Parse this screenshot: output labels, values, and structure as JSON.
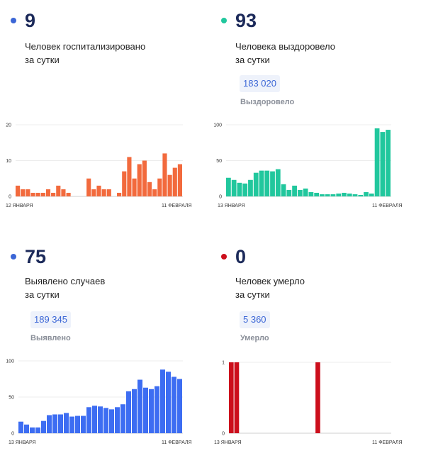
{
  "panels": [
    {
      "number": "9",
      "label_line1": "Человек госпитализировано",
      "label_line2": "за сутки",
      "total": "",
      "total_label": "",
      "color": "#f26a3d",
      "dot_color": "#3b66d6"
    },
    {
      "number": "93",
      "label_line1": "Человека выздоровело",
      "label_line2": "за сутки",
      "total": "183 020",
      "total_label": "Выздоровело",
      "color": "#21c79d",
      "dot_color": "#21c79d"
    },
    {
      "number": "75",
      "label_line1": "Выявлено случаев",
      "label_line2": "за сутки",
      "total": "189 345",
      "total_label": "Выявлено",
      "color": "#3d6df2",
      "dot_color": "#3b66d6"
    },
    {
      "number": "0",
      "label_line1": "Человек умерло",
      "label_line2": "за сутки",
      "total": "5 360",
      "total_label": "Умерло",
      "color": "#cc0f1c",
      "dot_color": "#cc0f1c"
    }
  ],
  "chart_data": [
    {
      "type": "bar",
      "x_start_label": "12 ЯНВАРЯ",
      "x_end_label": "11 ФЕВРАЛЯ",
      "yticks": [
        0,
        10,
        20
      ],
      "ylim": [
        0,
        20
      ],
      "values": [
        3,
        2,
        2,
        1,
        1,
        1,
        2,
        1,
        3,
        2,
        1,
        null,
        null,
        0,
        5,
        2,
        3,
        2,
        2,
        0,
        1,
        7,
        11,
        5,
        9,
        10,
        4,
        2,
        5,
        12,
        6,
        8,
        9
      ],
      "color": "#f26a3d"
    },
    {
      "type": "bar",
      "x_start_label": "13 ЯНВАРЯ",
      "x_end_label": "11 ФЕВРАЛЯ",
      "yticks": [
        0,
        50,
        100
      ],
      "ylim": [
        0,
        100
      ],
      "values": [
        26,
        23,
        19,
        18,
        23,
        33,
        36,
        36,
        35,
        38,
        17,
        9,
        15,
        9,
        11,
        6,
        5,
        3,
        3,
        3,
        4,
        5,
        4,
        3,
        2,
        6,
        4,
        95,
        90,
        93
      ],
      "color": "#21c79d"
    },
    {
      "type": "bar",
      "x_start_label": "13 ЯНВАРЯ",
      "x_end_label": "11 ФЕВРАЛЯ",
      "yticks": [
        0,
        50,
        100
      ],
      "ylim": [
        0,
        100
      ],
      "values": [
        16,
        12,
        8,
        8,
        17,
        25,
        26,
        26,
        28,
        23,
        24,
        24,
        36,
        38,
        37,
        35,
        33,
        36,
        40,
        58,
        61,
        74,
        63,
        61,
        65,
        88,
        85,
        78,
        75
      ],
      "color": "#3d6df2"
    },
    {
      "type": "bar",
      "x_start_label": "13 ЯНВАРЯ",
      "x_end_label": "11 ФЕВРАЛЯ",
      "yticks": [
        0,
        1
      ],
      "ylim": [
        0,
        1
      ],
      "values": [
        1,
        1,
        0,
        0,
        0,
        0,
        0,
        0,
        0,
        0,
        0,
        0,
        0,
        0,
        0,
        0,
        1,
        0,
        0,
        0,
        0,
        0,
        0,
        0,
        0,
        0,
        0,
        0,
        0,
        0
      ],
      "color": "#cc0f1c"
    }
  ]
}
